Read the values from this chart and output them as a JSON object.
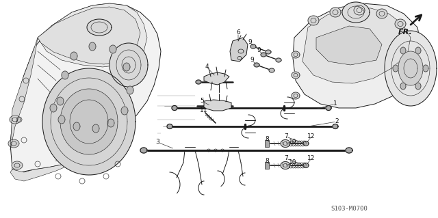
{
  "background_color": "#ffffff",
  "line_color": "#1a1a1a",
  "part_number_label": "S103-M0700",
  "fr_label": "FR.",
  "fig_width": 6.4,
  "fig_height": 3.19,
  "dpi": 100,
  "text_color": "#1a1a1a",
  "annotation_fontsize": 6.5
}
